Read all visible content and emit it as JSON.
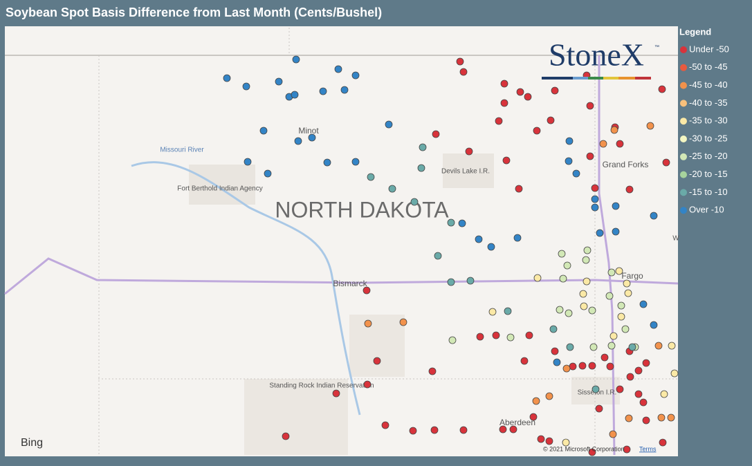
{
  "header": {
    "title": "Soybean Spot Basis Difference from Last Month (Cents/Bushel)"
  },
  "legend": {
    "title": "Legend",
    "items": [
      {
        "label": "Under -50",
        "color": "#d8333b"
      },
      {
        "label": "-50 to -45",
        "color": "#e85a3e"
      },
      {
        "label": "-45 to -40",
        "color": "#f2924c"
      },
      {
        "label": "-40 to -35",
        "color": "#f8c07b"
      },
      {
        "label": "-35 to -30",
        "color": "#fbe9a6"
      },
      {
        "label": "-30 to -25",
        "color": "#f3f6c2"
      },
      {
        "label": "-25 to -20",
        "color": "#d2e8b6"
      },
      {
        "label": "-20 to -15",
        "color": "#a7d39d"
      },
      {
        "label": "-15 to -10",
        "color": "#6aaaa8"
      },
      {
        "label": "Over -10",
        "color": "#3384c6"
      }
    ]
  },
  "map": {
    "labels": {
      "state": "NORTH DAKOTA",
      "minot": "Minot",
      "river": "Missouri River",
      "berthold": "Fort Berthold Indian Agency",
      "devils": "Devils Lake I.R.",
      "grandforks": "Grand Forks",
      "fargo": "Fargo",
      "bismarck": "Bismarck",
      "standing": "Standing Rock Indian Reservation",
      "sisseton": "Sisseton I.R.",
      "aberdeen": "Aberdeen",
      "edge": "W"
    },
    "logo": "StoneX",
    "trademark": "™",
    "bing": "Bing",
    "copyright": "© 2021 Microsoft Corporation",
    "terms": "Terms"
  }
}
